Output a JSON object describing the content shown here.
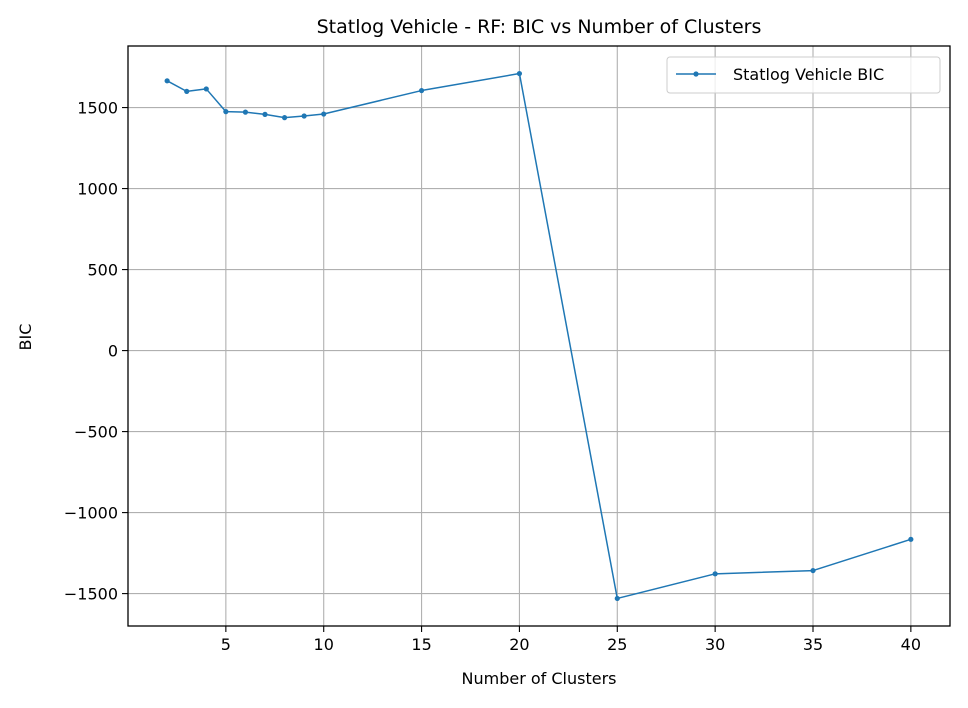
{
  "chart_data": {
    "type": "line",
    "title": "Statlog Vehicle - RF: BIC vs Number of Clusters",
    "xlabel": "Number of Clusters",
    "ylabel": "BIC",
    "xlim": [
      0,
      42
    ],
    "ylim": [
      -1700,
      1880
    ],
    "xticks": [
      5,
      10,
      15,
      20,
      25,
      30,
      35,
      40
    ],
    "xtick_labels": [
      "5",
      "10",
      "15",
      "20",
      "25",
      "30",
      "35",
      "40"
    ],
    "yticks": [
      -1500,
      -1000,
      -500,
      0,
      500,
      1000,
      1500
    ],
    "ytick_labels": [
      "−1500",
      "−1000",
      "−500",
      "0",
      "500",
      "1000",
      "1500"
    ],
    "grid": true,
    "legend_position": "top-right",
    "series": [
      {
        "name": "Statlog Vehicle BIC",
        "color": "#1f77b4",
        "marker": "dot",
        "x": [
          2,
          3,
          4,
          5,
          6,
          7,
          8,
          9,
          10,
          15,
          20,
          25,
          30,
          35,
          40
        ],
        "y": [
          1665,
          1600,
          1615,
          1475,
          1472,
          1458,
          1438,
          1448,
          1460,
          1605,
          1710,
          -1530,
          -1378,
          -1358,
          -1165
        ]
      }
    ]
  }
}
